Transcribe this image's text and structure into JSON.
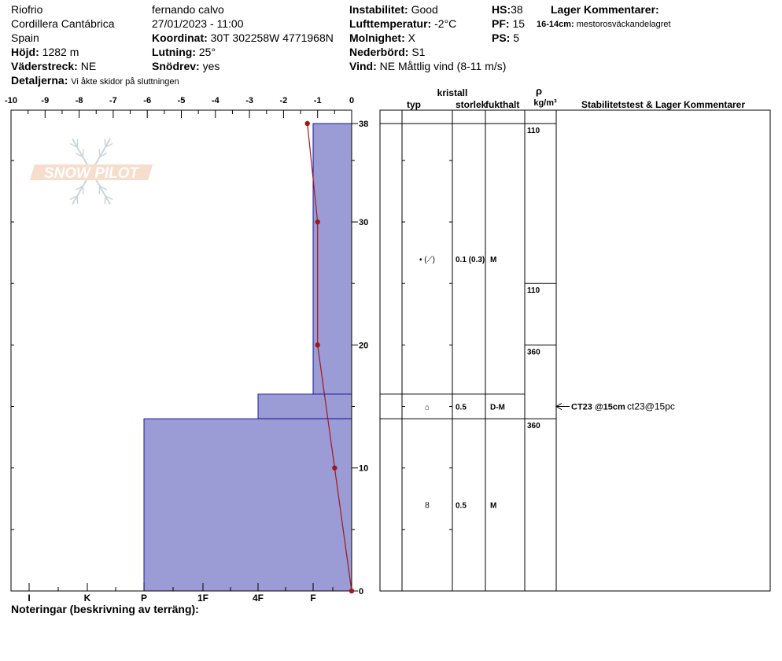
{
  "header": {
    "location": "Riofrio",
    "range": "Cordillera Cantábrica",
    "country": "Spain",
    "elevation_label": "Höjd:",
    "elevation": "1282 m",
    "aspect_label": "Väderstreck:",
    "aspect": "NE",
    "details_label": "Detaljerna:",
    "details": "Vi åkte skidor på sluttningen",
    "observer": "fernando calvo",
    "datetime": "27/01/2023 - 11:00",
    "coord_label": "Koordinat:",
    "coord": "30T 302258W 4771968N",
    "slope_label": "Lutning:",
    "slope": "25°",
    "drift_label": "Snödrev:",
    "drift": "yes",
    "stability_label": "Instabilitet:",
    "stability": "Good",
    "airtemp_label": "Lufttemperatur:",
    "airtemp": "-2°C",
    "sky_label": "Molnighet:",
    "sky": "X",
    "precip_label": "Nederbörd:",
    "precip": "S1",
    "wind_label": "Vind:",
    "wind": "NE Måttlig vind (8-11 m/s)",
    "hs_label": "HS:",
    "hs": "38",
    "pf_label": "PF:",
    "pf": "15",
    "ps_label": "PS:",
    "ps": "5",
    "layer_comments_label": "Lager Kommentarer:",
    "layer_comment_depth": "16-14cm:",
    "layer_comment": "mestorosväckandelagret"
  },
  "logo_text": "SNOW PILOT",
  "notes_label": "Noteringar (beskrivning av terräng):",
  "table_headers": {
    "type": "typ",
    "crystal": "kristall",
    "size": "storlek",
    "moisture": "fukthalt",
    "rho": "ρ",
    "density_unit": "kg/m³",
    "stability": "Stabilitetstest & Lager Kommentarer"
  },
  "chart_data": {
    "type": "snow_profile",
    "temp_axis": {
      "ticks": [
        -10,
        -9,
        -8,
        -7,
        -6,
        -5,
        -4,
        -3,
        -2,
        -1,
        0
      ],
      "range": [
        -10,
        0
      ]
    },
    "height_axis": {
      "ticks": [
        0,
        10,
        20,
        30,
        38
      ],
      "range": [
        0,
        38
      ]
    },
    "hardness_axis": {
      "labels": [
        "I",
        "K",
        "P",
        "1F",
        "4F",
        "F"
      ]
    },
    "temperature_profile": [
      {
        "height": 38,
        "temp": -1.3
      },
      {
        "height": 30,
        "temp": -1.0
      },
      {
        "height": 20,
        "temp": -1.0
      },
      {
        "height": 10,
        "temp": -0.5
      },
      {
        "height": 0,
        "temp": 0.0
      }
    ],
    "hardness_profile": [
      {
        "top": 38,
        "bottom": 16,
        "hardness": "F"
      },
      {
        "top": 16,
        "bottom": 14,
        "hardness": "4F"
      },
      {
        "top": 14,
        "bottom": 0,
        "hardness": "P"
      }
    ],
    "layers": [
      {
        "top": 38,
        "bottom": 16,
        "type_symbol": "• (⟋)",
        "size": "0.1 (0.3)",
        "moisture": "M"
      },
      {
        "top": 16,
        "bottom": 14,
        "type_symbol": "⌂",
        "size": "0.5",
        "moisture": "D-M"
      },
      {
        "top": 14,
        "bottom": 0,
        "type_symbol": "ȣ",
        "size": "0.5",
        "moisture": "M"
      }
    ],
    "densities": [
      {
        "top": 38,
        "bottom": 25,
        "value": "110"
      },
      {
        "top": 25,
        "bottom": 20,
        "value": "110"
      },
      {
        "top": 20,
        "bottom": 14,
        "value": "360"
      },
      {
        "top": 14,
        "bottom": 0,
        "value": "360"
      }
    ],
    "stability_tests": [
      {
        "height": 15,
        "label": "CT23 @15cm",
        "comment": "ct23@15pc"
      }
    ]
  }
}
